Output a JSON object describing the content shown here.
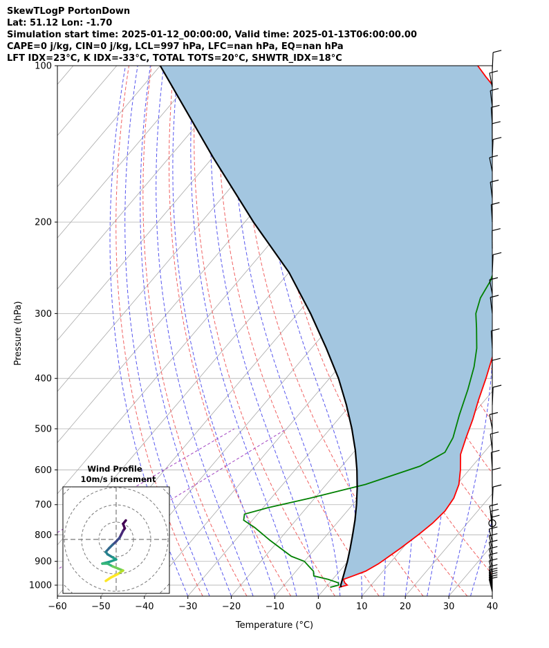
{
  "header": {
    "line1": "SkewTLogP PortonDown",
    "line2": "Lat: 51.12   Lon: -1.70",
    "line3": "Simulation start time: 2025-01-12_00:00:00, Valid time: 2025-01-13T06:00:00.00",
    "line4": "CAPE=0 j/kg, CIN=0 j/kg, LCL=997 hPa, LFC=nan hPa, EQ=nan hPa",
    "line5": "LFT IDX=23$^\\circ$C, K IDX=-33$^\\circ$C, TOTAL TOTS=20$^\\circ$C, SHWTR_IDX=18$^\\circ$C"
  },
  "chart_data": {
    "type": "line",
    "subtype": "skew-t log-p",
    "xlabel": "Temperature ($^\\circ$C)",
    "ylabel": "Pressure (hPa)",
    "xlim": [
      -60,
      40
    ],
    "ylim": [
      1050,
      100
    ],
    "yscale": "log",
    "x_ticks": [
      "−60",
      "−50",
      "−40",
      "−30",
      "−20",
      "−10",
      "0",
      "10",
      "20",
      "30",
      "40"
    ],
    "y_ticks": [
      "1000",
      "900",
      "800",
      "700",
      "600",
      "500",
      "400",
      "300",
      "200",
      "100"
    ],
    "grid": true,
    "series": [
      {
        "color": "#ff0000",
        "points": [
          [
            3,
            1010
          ],
          [
            4.5,
            1000
          ],
          [
            3.5,
            990
          ],
          [
            2.5,
            975
          ],
          [
            4,
            960
          ],
          [
            6,
            940
          ],
          [
            7.5,
            910
          ],
          [
            8.5,
            880
          ],
          [
            9.5,
            850
          ],
          [
            11,
            800
          ],
          [
            12,
            760
          ],
          [
            12.5,
            720
          ],
          [
            12,
            680
          ],
          [
            10.5,
            640
          ],
          [
            8,
            600
          ],
          [
            5,
            560
          ],
          [
            3,
            520
          ],
          [
            1,
            480
          ],
          [
            -1.5,
            440
          ],
          [
            -4,
            400
          ],
          [
            -7,
            360
          ],
          [
            -10.5,
            320
          ],
          [
            -13,
            300
          ],
          [
            -17,
            270
          ],
          [
            -21,
            245
          ],
          [
            -25,
            225
          ],
          [
            -29,
            208
          ],
          [
            -31,
            200
          ],
          [
            -33,
            190
          ],
          [
            -35,
            180
          ],
          [
            -36.5,
            170
          ],
          [
            -38.5,
            160
          ],
          [
            -41,
            150
          ],
          [
            -44,
            140
          ],
          [
            -47,
            130
          ],
          [
            -51,
            120
          ],
          [
            -55,
            115
          ],
          [
            -59,
            110
          ],
          [
            -63,
            105
          ],
          [
            -67,
            100
          ]
        ]
      },
      {
        "color": "#008000",
        "points": [
          [
            1,
            1010
          ],
          [
            2.5,
            1000
          ],
          [
            2,
            990
          ],
          [
            -1,
            975
          ],
          [
            -5,
            960
          ],
          [
            -6,
            940
          ],
          [
            -8,
            920
          ],
          [
            -10,
            900
          ],
          [
            -14,
            880
          ],
          [
            -22,
            820
          ],
          [
            -28,
            775
          ],
          [
            -32,
            750
          ],
          [
            -33,
            730
          ],
          [
            -29,
            710
          ],
          [
            -21,
            680
          ],
          [
            -11,
            640
          ],
          [
            -2,
            590
          ],
          [
            1,
            555
          ],
          [
            0,
            520
          ],
          [
            -3,
            470
          ],
          [
            -6,
            420
          ],
          [
            -9,
            380
          ],
          [
            -12,
            350
          ],
          [
            -16,
            320
          ],
          [
            -19,
            300
          ],
          [
            -21,
            280
          ],
          [
            -22,
            260
          ],
          [
            -24,
            240
          ],
          [
            -26,
            220
          ],
          [
            -29,
            205
          ],
          [
            -31,
            195
          ],
          [
            -31.5,
            185
          ],
          [
            -34,
            175
          ],
          [
            -36,
            165
          ],
          [
            -37.5,
            155
          ],
          [
            -40,
            145
          ],
          [
            -42,
            137
          ],
          [
            -44,
            130
          ],
          [
            -45,
            125
          ],
          [
            -47,
            120
          ],
          [
            -49,
            115
          ],
          [
            -51,
            110
          ],
          [
            -53,
            105
          ],
          [
            -55,
            100
          ]
        ]
      },
      {
        "color": "#000000",
        "points": [
          [
            3.5,
            1010
          ],
          [
            3,
            1000
          ],
          [
            1.5,
            950
          ],
          [
            -0.1,
            900
          ],
          [
            -2,
            850
          ],
          [
            -4.1,
            800
          ],
          [
            -6.4,
            750
          ],
          [
            -9.1,
            700
          ],
          [
            -12.2,
            650
          ],
          [
            -15.8,
            600
          ],
          [
            -20,
            550
          ],
          [
            -25,
            500
          ],
          [
            -30.9,
            450
          ],
          [
            -37.9,
            400
          ],
          [
            -46.6,
            350
          ],
          [
            -57,
            300
          ],
          [
            -70,
            250
          ],
          [
            -88,
            200
          ],
          [
            -110,
            150
          ],
          [
            -140,
            100
          ]
        ]
      }
    ],
    "shaded_region": {
      "between": [
        "temperature",
        "parcel"
      ],
      "color": "#a3c6e0"
    },
    "wind_profile": {
      "title": "Wind Profile",
      "subtitle": "10m/s increment",
      "points": [
        [
          -3,
          -12
        ],
        [
          -1.5,
          -11
        ],
        [
          0.5,
          -10
        ],
        [
          1.5,
          -9.3
        ],
        [
          2,
          -9
        ],
        [
          0.5,
          -8.4
        ],
        [
          -1,
          -7.8
        ],
        [
          -2.5,
          -7
        ],
        [
          -4,
          -7
        ],
        [
          -2,
          -6.5
        ],
        [
          0,
          -5.8
        ],
        [
          -1,
          -5.2
        ],
        [
          -2.5,
          -4.3
        ],
        [
          -3,
          -3.6
        ],
        [
          -2,
          -2.5
        ],
        [
          -1,
          -1.5
        ],
        [
          0,
          -0.6
        ],
        [
          1,
          0.5
        ],
        [
          1.5,
          1.5
        ],
        [
          2,
          2.5
        ],
        [
          2.5,
          3.2
        ],
        [
          2,
          4.5
        ],
        [
          2.8,
          5.5
        ]
      ]
    }
  }
}
